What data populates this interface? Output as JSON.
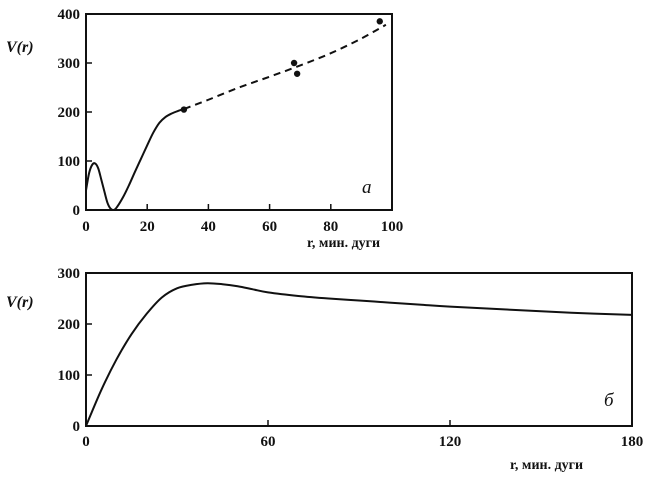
{
  "chart_data": [
    {
      "type": "line",
      "panel_label": "a",
      "title": "",
      "ylabel": "V(r)",
      "xlabel": "r, мин. дуги",
      "xlim": [
        0,
        100
      ],
      "ylim": [
        0,
        400
      ],
      "xticks": [
        "0",
        "20",
        "40",
        "60",
        "80",
        "100"
      ],
      "yticks": [
        "0",
        "100",
        "200",
        "300",
        "400"
      ],
      "grid": false,
      "series": [
        {
          "style": "solid",
          "x": [
            0,
            1,
            2,
            3,
            4,
            5,
            6,
            7,
            8,
            9,
            10,
            12,
            14,
            16,
            18,
            20,
            22,
            24,
            26,
            28,
            30,
            32
          ],
          "y": [
            40,
            75,
            92,
            95,
            85,
            62,
            38,
            15,
            3,
            0,
            5,
            25,
            50,
            78,
            105,
            132,
            158,
            178,
            190,
            197,
            202,
            206
          ]
        },
        {
          "style": "dashed",
          "x": [
            32,
            40,
            50,
            60,
            70,
            80,
            90,
            98
          ],
          "y": [
            206,
            225,
            250,
            272,
            295,
            320,
            350,
            378
          ]
        },
        {
          "style": "points",
          "x": [
            32,
            68,
            69,
            96
          ],
          "y": [
            205,
            300,
            278,
            385
          ]
        }
      ]
    },
    {
      "type": "line",
      "panel_label": "б",
      "title": "",
      "ylabel": "V(r)",
      "xlabel": "r, мин. дуги",
      "xlim": [
        0,
        180
      ],
      "ylim": [
        0,
        300
      ],
      "xticks": [
        "0",
        "60",
        "120",
        "180"
      ],
      "yticks": [
        "0",
        "100",
        "200",
        "300"
      ],
      "grid": false,
      "series": [
        {
          "style": "solid",
          "x": [
            0,
            5,
            10,
            15,
            20,
            25,
            30,
            35,
            40,
            45,
            50,
            55,
            60,
            70,
            80,
            90,
            100,
            110,
            120,
            140,
            160,
            180
          ],
          "y": [
            0,
            70,
            130,
            180,
            220,
            252,
            270,
            277,
            280,
            278,
            274,
            268,
            262,
            255,
            250,
            246,
            242,
            238,
            234,
            228,
            222,
            218
          ]
        }
      ]
    }
  ]
}
